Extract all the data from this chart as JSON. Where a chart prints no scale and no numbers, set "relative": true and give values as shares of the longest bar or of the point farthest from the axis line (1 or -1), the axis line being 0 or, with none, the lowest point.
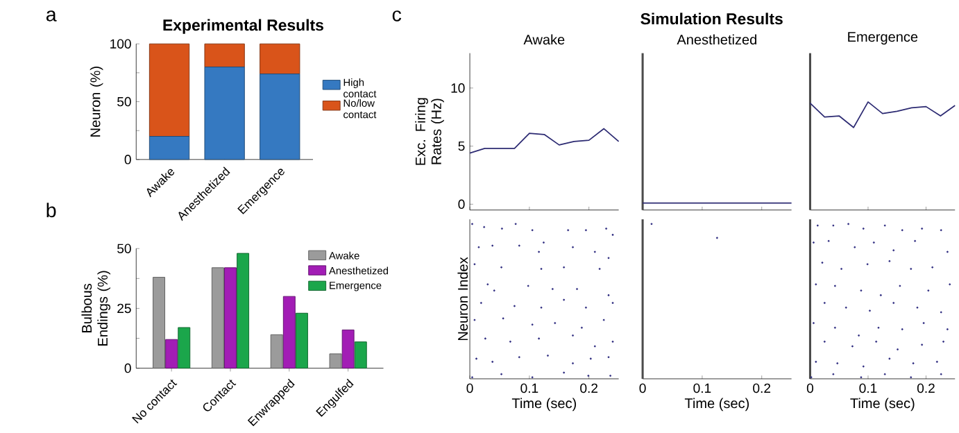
{
  "chart_data": [
    {
      "type": "bar",
      "stacked": true,
      "title": "Experimental Results",
      "ylabel": "Neuron (%)",
      "categories": [
        "Awake",
        "Anesthetized",
        "Emergence"
      ],
      "series": [
        {
          "name": "High contact",
          "color": "#3579c1",
          "values": [
            20,
            80,
            74
          ]
        },
        {
          "name": "No/low contact",
          "color": "#d9541a",
          "values": [
            80,
            20,
            26
          ]
        }
      ],
      "ylim": [
        0,
        100
      ],
      "yticks": [
        0,
        {
          "value": 25,
          "label": null
        },
        50,
        {
          "value": 75,
          "label": null
        },
        100
      ],
      "legend": "right",
      "annotations": [
        "a"
      ]
    },
    {
      "type": "bar",
      "ylabel": "Bulbous Endings (%)",
      "categories": [
        "No contact",
        "Contact",
        "Enwrapped",
        "Engulfed"
      ],
      "series": [
        {
          "name": "Awake",
          "color": "#9b9b9b",
          "values": [
            38,
            42,
            14,
            6
          ]
        },
        {
          "name": "Anesthetized",
          "color": "#a21db5",
          "values": [
            12,
            42,
            30,
            16
          ]
        },
        {
          "name": "Emergence",
          "color": "#1ba64b",
          "values": [
            17,
            48,
            23,
            11
          ]
        }
      ],
      "ylim": [
        0,
        50
      ],
      "yticks": [
        0,
        {
          "value": 12.5,
          "label": null
        },
        25,
        {
          "value": 37.5,
          "label": null
        },
        50
      ],
      "legend": "top right",
      "annotations": [
        "b"
      ]
    },
    {
      "type": "line",
      "title": "Awake",
      "ylabel": "Exc. Firing Rates (Hz)",
      "x": [
        0,
        0.025,
        0.05,
        0.075,
        0.1,
        0.125,
        0.15,
        0.175,
        0.2,
        0.225,
        0.25
      ],
      "series": [
        {
          "color": "#2c2a72",
          "values": [
            4.4,
            4.8,
            4.8,
            4.8,
            6.1,
            6.0,
            5.1,
            5.4,
            5.5,
            6.5,
            5.4
          ]
        }
      ],
      "xlim": [
        0,
        0.25
      ],
      "xticks": [
        0,
        0.1,
        0.2
      ],
      "ylim": [
        -0.5,
        13
      ],
      "yticks": [
        0,
        5,
        10
      ],
      "tick_labels": "y",
      "annotations": [
        "c",
        "Simulation Results"
      ]
    },
    {
      "type": "line",
      "title": "Anesthetized",
      "x": [
        0,
        0.025,
        0.05,
        0.075,
        0.1,
        0.125,
        0.15,
        0.175,
        0.2,
        0.225,
        0.25
      ],
      "series": [
        {
          "color": "#2c2a72",
          "values": [
            0.1,
            0.1,
            0.1,
            0.1,
            0.1,
            0.1,
            0.1,
            0.1,
            0.1,
            0.1,
            0.1
          ]
        }
      ],
      "xlim": [
        0,
        0.25
      ],
      "xticks": [
        0,
        0.1,
        0.2
      ],
      "ylim": [
        -0.5,
        13
      ],
      "tick_labels": false
    },
    {
      "type": "line",
      "title": "Emergence",
      "x": [
        0,
        0.025,
        0.05,
        0.075,
        0.1,
        0.125,
        0.15,
        0.175,
        0.2,
        0.225,
        0.25
      ],
      "series": [
        {
          "color": "#2c2a72",
          "values": [
            8.7,
            7.5,
            7.6,
            6.6,
            8.8,
            7.8,
            8.0,
            8.3,
            8.4,
            7.6,
            8.5
          ]
        }
      ],
      "xlim": [
        0,
        0.25
      ],
      "xticks": [
        0,
        0.1,
        0.2
      ],
      "ylim": [
        -0.5,
        13
      ],
      "tick_labels": false
    },
    {
      "type": "scatter",
      "relative": true,
      "xlabel": "Time (sec)",
      "ylabel": "Neuron Index",
      "x": [
        0.004,
        0.024,
        0.054,
        0.077,
        0.105,
        0.124,
        0.165,
        0.195,
        0.229,
        0.24,
        0.015,
        0.038,
        0.083,
        0.116,
        0.173,
        0.21,
        0.233,
        0.008,
        0.053,
        0.12,
        0.158,
        0.218,
        0.03,
        0.041,
        0.098,
        0.139,
        0.18,
        0.233,
        0.019,
        0.075,
        0.12,
        0.158,
        0.195,
        0.24,
        0.008,
        0.056,
        0.105,
        0.143,
        0.188,
        0.225,
        0.026,
        0.068,
        0.116,
        0.173,
        0.21,
        0.24,
        0.011,
        0.038,
        0.083,
        0.131,
        0.173,
        0.203,
        0.233,
        0.004,
        0.053,
        0.105,
        0.158,
        0.199,
        0.236
      ],
      "series": [
        {
          "color": "#2e2c80",
          "values": [
            1.0,
            0.98,
            0.97,
            1.0,
            0.96,
            0.88,
            0.96,
            0.96,
            0.97,
            0.93,
            0.85,
            0.86,
            0.86,
            0.82,
            0.85,
            0.82,
            0.78,
            0.74,
            0.72,
            0.71,
            0.72,
            0.71,
            0.61,
            0.57,
            0.6,
            0.58,
            0.58,
            0.54,
            0.49,
            0.47,
            0.46,
            0.51,
            0.46,
            0.49,
            0.38,
            0.39,
            0.35,
            0.36,
            0.33,
            0.38,
            0.26,
            0.24,
            0.26,
            0.28,
            0.21,
            0.24,
            0.13,
            0.11,
            0.14,
            0.15,
            0.1,
            0.13,
            0.14,
            0.01,
            0.03,
            0.01,
            0.04,
            0.02,
            0.02
          ]
        }
      ],
      "xlim": [
        0,
        0.25
      ],
      "xticks": [
        0,
        0.1,
        0.2
      ],
      "tick_labels": "x"
    },
    {
      "type": "scatter",
      "relative": true,
      "xlabel": "Time (sec)",
      "x": [
        0.015,
        0.125
      ],
      "series": [
        {
          "color": "#2e2c80",
          "values": [
            1.0,
            0.91
          ]
        }
      ],
      "xlim": [
        0,
        0.25
      ],
      "xticks": [
        0,
        0.1,
        0.2
      ],
      "tick_labels": "x"
    },
    {
      "type": "scatter",
      "relative": true,
      "xlabel": "Time (sec)",
      "x": [
        0.013,
        0.04,
        0.066,
        0.092,
        0.129,
        0.159,
        0.193,
        0.226,
        0.006,
        0.032,
        0.077,
        0.11,
        0.144,
        0.181,
        0.237,
        0.021,
        0.054,
        0.099,
        0.137,
        0.174,
        0.211,
        0.01,
        0.043,
        0.088,
        0.122,
        0.155,
        0.204,
        0.241,
        0.025,
        0.062,
        0.103,
        0.144,
        0.185,
        0.226,
        0.006,
        0.043,
        0.084,
        0.118,
        0.159,
        0.196,
        0.237,
        0.025,
        0.073,
        0.114,
        0.151,
        0.193,
        0.23,
        0.01,
        0.047,
        0.092,
        0.137,
        0.178,
        0.219,
        0.002,
        0.04,
        0.088,
        0.129,
        0.174,
        0.226
      ],
      "series": [
        {
          "color": "#2e2c80",
          "values": [
            0.99,
            0.99,
            1.0,
            0.97,
            0.99,
            0.96,
            0.97,
            0.96,
            0.88,
            0.89,
            0.85,
            0.88,
            0.83,
            0.89,
            0.82,
            0.75,
            0.71,
            0.74,
            0.76,
            0.71,
            0.72,
            0.61,
            0.6,
            0.57,
            0.54,
            0.6,
            0.57,
            0.61,
            0.49,
            0.46,
            0.44,
            0.49,
            0.46,
            0.43,
            0.36,
            0.33,
            0.28,
            0.33,
            0.32,
            0.36,
            0.32,
            0.24,
            0.21,
            0.24,
            0.19,
            0.22,
            0.24,
            0.11,
            0.1,
            0.08,
            0.13,
            0.1,
            0.11,
            0.01,
            0.03,
            0.01,
            0.03,
            0.01,
            0.03
          ]
        }
      ],
      "xlim": [
        0,
        0.25
      ],
      "xticks": [
        0,
        0.1,
        0.2
      ],
      "tick_labels": "x"
    }
  ]
}
